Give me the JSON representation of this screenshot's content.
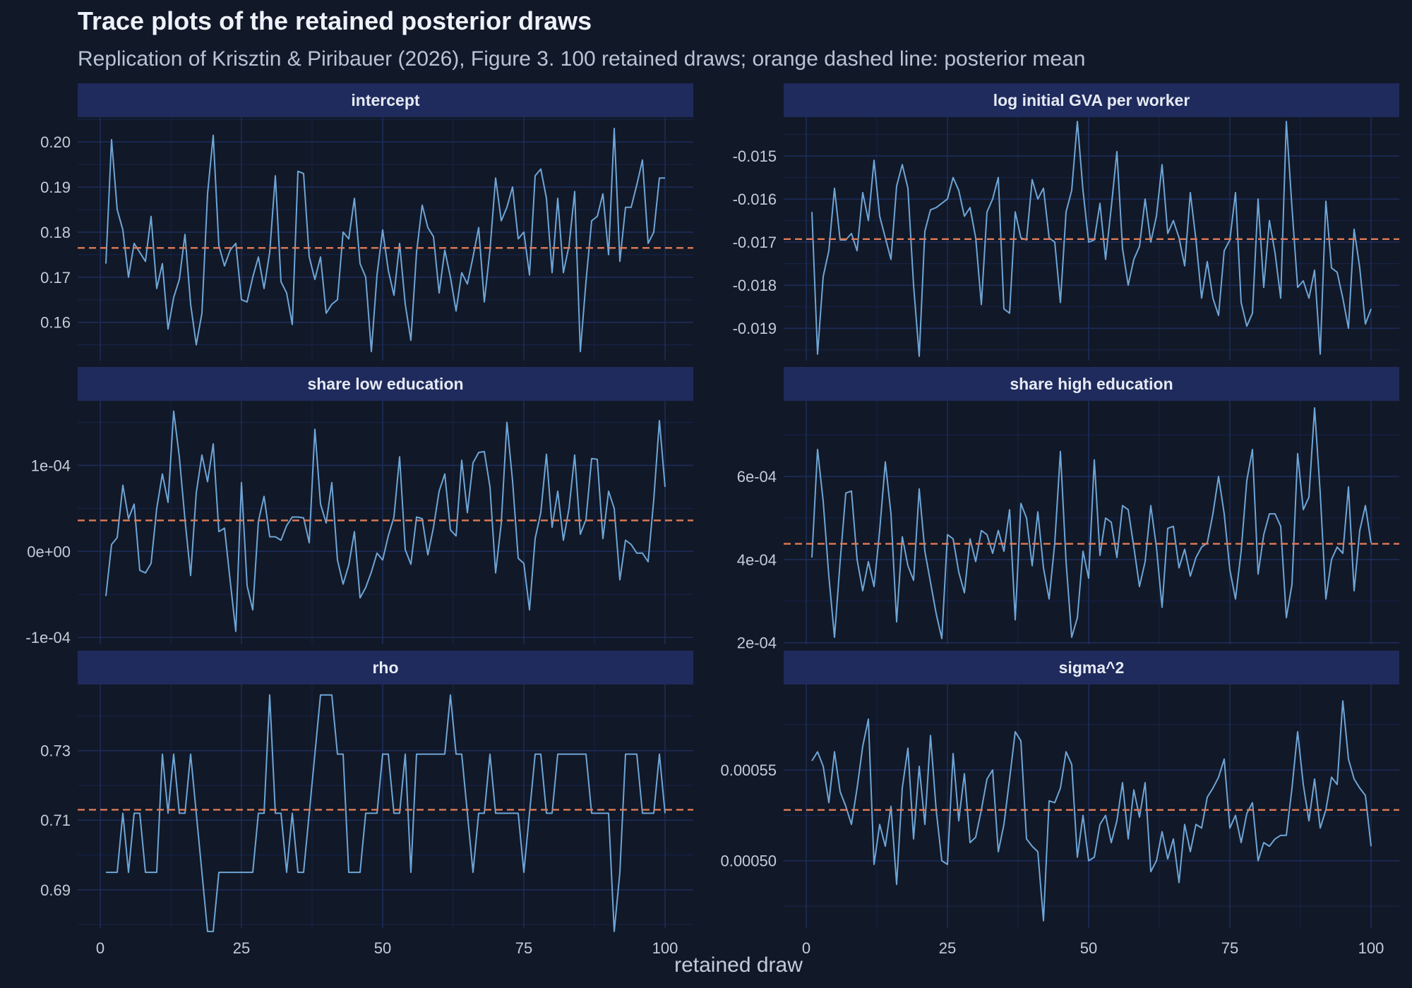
{
  "title": "Trace plots of the retained posterior draws",
  "subtitle": "Replication of Krisztin & Piribauer (2026), Figure 3. 100 retained draws; orange dashed line: posterior mean",
  "colors": {
    "background": "#111827",
    "strip": "#1f2b5c",
    "grid_major": "#1d2c5a",
    "grid_minor": "#172247",
    "trace": "#6ea5d6",
    "mean_line": "#e07b57"
  },
  "chart_data": {
    "type": "line",
    "xlabel": "retained draw",
    "xlim": [
      -4,
      105
    ],
    "xticks": [
      0,
      25,
      50,
      75,
      100
    ],
    "xtick_labels": [
      "0",
      "25",
      "50",
      "75",
      "100"
    ],
    "grid": true,
    "n_draws": 100,
    "panels": [
      {
        "name": "intercept",
        "ylim": [
          0.1515,
          0.2055
        ],
        "yticks": [
          0.16,
          0.17,
          0.18,
          0.19,
          0.2
        ],
        "ytick_labels": [
          "0.16",
          "0.17",
          "0.18",
          "0.19",
          "0.20"
        ],
        "mean": 0.1765,
        "values": [
          0.173,
          0.2005,
          0.185,
          0.1805,
          0.17,
          0.1775,
          0.1755,
          0.1735,
          0.1835,
          0.1675,
          0.173,
          0.1585,
          0.1655,
          0.1695,
          0.1795,
          0.164,
          0.155,
          0.162,
          0.1885,
          0.2015,
          0.177,
          0.1725,
          0.176,
          0.1775,
          0.165,
          0.1645,
          0.17,
          0.1745,
          0.1675,
          0.1755,
          0.1925,
          0.169,
          0.1665,
          0.1595,
          0.1935,
          0.193,
          0.1745,
          0.1695,
          0.1745,
          0.162,
          0.164,
          0.165,
          0.18,
          0.1785,
          0.1875,
          0.173,
          0.17,
          0.1535,
          0.1705,
          0.1805,
          0.1715,
          0.166,
          0.1775,
          0.164,
          0.156,
          0.1755,
          0.186,
          0.181,
          0.179,
          0.1665,
          0.176,
          0.17,
          0.1625,
          0.171,
          0.1685,
          0.1745,
          0.181,
          0.1645,
          0.176,
          0.192,
          0.1825,
          0.1855,
          0.19,
          0.1785,
          0.18,
          0.1705,
          0.1925,
          0.194,
          0.1875,
          0.171,
          0.1875,
          0.171,
          0.177,
          0.189,
          0.1535,
          0.169,
          0.1825,
          0.1835,
          0.1885,
          0.175,
          0.203,
          0.1735,
          0.1855,
          0.1855,
          0.1905,
          0.196,
          0.1775,
          0.18,
          0.192,
          0.192
        ]
      },
      {
        "name": "log initial GVA per worker",
        "ylim": [
          -0.01975,
          -0.0141
        ],
        "yticks": [
          -0.019,
          -0.018,
          -0.017,
          -0.016,
          -0.015
        ],
        "ytick_labels": [
          "-0.019",
          "-0.018",
          "-0.017",
          "-0.016",
          "-0.015"
        ],
        "mean": -0.01693,
        "values": [
          -0.0163,
          -0.0196,
          -0.0178,
          -0.0172,
          -0.01575,
          -0.01695,
          -0.01695,
          -0.0168,
          -0.0172,
          -0.01585,
          -0.0165,
          -0.0151,
          -0.0164,
          -0.0169,
          -0.0174,
          -0.0157,
          -0.0152,
          -0.01575,
          -0.018,
          -0.01965,
          -0.01675,
          -0.01625,
          -0.0162,
          -0.0161,
          -0.016,
          -0.0155,
          -0.0158,
          -0.0164,
          -0.0162,
          -0.0169,
          -0.01845,
          -0.0163,
          -0.016,
          -0.0155,
          -0.01855,
          -0.01865,
          -0.0163,
          -0.0169,
          -0.01695,
          -0.01555,
          -0.016,
          -0.01575,
          -0.0169,
          -0.017,
          -0.0184,
          -0.0163,
          -0.0158,
          -0.0142,
          -0.0158,
          -0.017,
          -0.01695,
          -0.0161,
          -0.0174,
          -0.0162,
          -0.0149,
          -0.01715,
          -0.018,
          -0.0174,
          -0.0171,
          -0.016,
          -0.017,
          -0.0164,
          -0.0152,
          -0.0168,
          -0.0165,
          -0.0169,
          -0.01755,
          -0.01585,
          -0.01695,
          -0.0183,
          -0.01745,
          -0.0183,
          -0.0187,
          -0.0172,
          -0.01695,
          -0.01585,
          -0.0184,
          -0.01895,
          -0.01865,
          -0.016,
          -0.01805,
          -0.0165,
          -0.01725,
          -0.0183,
          -0.0142,
          -0.0162,
          -0.01805,
          -0.0179,
          -0.0183,
          -0.01765,
          -0.0196,
          -0.01605,
          -0.0176,
          -0.0177,
          -0.0183,
          -0.019,
          -0.0167,
          -0.0176,
          -0.0189,
          -0.01855
        ]
      },
      {
        "name": "share low education",
        "ylim": [
          -0.000108,
          0.000175
        ],
        "yticks": [
          -0.0001,
          0.0,
          0.0001
        ],
        "ytick_labels": [
          "-1e-04",
          "0e+00",
          "1e-04"
        ],
        "mean": 3.6e-05,
        "values": [
          -5.2e-05,
          8e-06,
          1.6e-05,
          7.7e-05,
          3.8e-05,
          5.5e-05,
          -2.2e-05,
          -2.5e-05,
          -1.4e-05,
          5e-05,
          9e-05,
          5.7e-05,
          0.000163,
          0.00011,
          3.7e-05,
          -2.8e-05,
          6.8e-05,
          0.000112,
          8.1e-05,
          0.000125,
          2.3e-05,
          2.7e-05,
          -3.4e-05,
          -9.3e-05,
          8e-05,
          -4e-05,
          -6.8e-05,
          3.5e-05,
          6.4e-05,
          1.7e-05,
          1.7e-05,
          1.3e-05,
          3e-05,
          4e-05,
          4e-05,
          3.9e-05,
          1e-05,
          0.000142,
          5.5e-05,
          3.3e-05,
          8e-05,
          -1e-05,
          -3.8e-05,
          -1.6e-05,
          2.3e-05,
          -5.4e-05,
          -4.2e-05,
          -2.4e-05,
          -2e-06,
          -1e-05,
          1.8e-05,
          4e-05,
          0.00011,
          2e-06,
          -1.5e-05,
          4e-05,
          3.8e-05,
          -4e-06,
          2.8e-05,
          7e-05,
          9e-05,
          2.5e-05,
          1.8e-05,
          0.000106,
          4.5e-05,
          0.000103,
          0.000115,
          0.000116,
          7.5e-05,
          -2.5e-05,
          3.3e-05,
          0.00015,
          8.2e-05,
          -8e-06,
          -1.4e-05,
          -6.8e-05,
          1.5e-05,
          4.5e-05,
          0.000113,
          2.8e-05,
          7e-05,
          1.3e-05,
          5e-05,
          0.000112,
          2e-05,
          3.7e-05,
          0.000108,
          0.000107,
          1.5e-05,
          7e-05,
          5e-05,
          -3.3e-05,
          1.3e-05,
          8e-06,
          -2e-06,
          -2e-06,
          -1.2e-05,
          6e-05,
          0.000152,
          7.5e-05
        ]
      },
      {
        "name": "share high education",
        "ylim": [
          0.000196,
          0.000782
        ],
        "yticks": [
          0.0002,
          0.0004,
          0.0006
        ],
        "ytick_labels": [
          "2e-04",
          "4e-04",
          "6e-04"
        ],
        "mean": 0.000438,
        "values": [
          0.000405,
          0.000665,
          0.00054,
          0.00036,
          0.000213,
          0.000395,
          0.00056,
          0.000565,
          0.0004,
          0.000325,
          0.000395,
          0.000335,
          0.00047,
          0.000635,
          0.00051,
          0.00025,
          0.000455,
          0.000385,
          0.00035,
          0.00057,
          0.00042,
          0.000345,
          0.00027,
          0.00021,
          0.00046,
          0.00045,
          0.00037,
          0.00032,
          0.00045,
          0.000395,
          0.00047,
          0.00046,
          0.000415,
          0.00047,
          0.00042,
          0.00052,
          0.000255,
          0.000535,
          0.0005,
          0.000385,
          0.000515,
          0.00038,
          0.000305,
          0.00044,
          0.00066,
          0.000395,
          0.000213,
          0.00026,
          0.00042,
          0.000355,
          0.00064,
          0.00041,
          0.0005,
          0.00049,
          0.000405,
          0.00053,
          0.00052,
          0.00043,
          0.000335,
          0.000395,
          0.00053,
          0.00043,
          0.000285,
          0.000475,
          0.00048,
          0.00038,
          0.000425,
          0.00036,
          0.000405,
          0.00043,
          0.00044,
          0.00051,
          0.0006,
          0.00051,
          0.000375,
          0.000305,
          0.00042,
          0.00059,
          0.000665,
          0.000365,
          0.00046,
          0.00051,
          0.00051,
          0.00048,
          0.00026,
          0.00034,
          0.000655,
          0.00052,
          0.00055,
          0.000765,
          0.00056,
          0.000305,
          0.0004,
          0.00043,
          0.000415,
          0.000575,
          0.000325,
          0.00047,
          0.00053,
          0.00044
        ]
      },
      {
        "name": "rho",
        "ylim": [
          0.679,
          0.749
        ],
        "yticks": [
          0.69,
          0.71,
          0.73
        ],
        "ytick_labels": [
          "0.69",
          "0.71",
          "0.73"
        ],
        "mean": 0.713,
        "values": [
          0.695,
          0.695,
          0.695,
          0.712,
          0.695,
          0.712,
          0.712,
          0.695,
          0.695,
          0.695,
          0.729,
          0.712,
          0.729,
          0.712,
          0.712,
          0.729,
          0.712,
          0.695,
          0.678,
          0.678,
          0.695,
          0.695,
          0.695,
          0.695,
          0.695,
          0.695,
          0.695,
          0.712,
          0.712,
          0.746,
          0.712,
          0.712,
          0.695,
          0.712,
          0.695,
          0.695,
          0.712,
          0.729,
          0.746,
          0.746,
          0.746,
          0.729,
          0.729,
          0.695,
          0.695,
          0.695,
          0.712,
          0.712,
          0.712,
          0.729,
          0.729,
          0.712,
          0.712,
          0.729,
          0.695,
          0.729,
          0.729,
          0.729,
          0.729,
          0.729,
          0.729,
          0.746,
          0.729,
          0.729,
          0.712,
          0.695,
          0.712,
          0.712,
          0.729,
          0.712,
          0.712,
          0.712,
          0.712,
          0.712,
          0.695,
          0.712,
          0.729,
          0.729,
          0.712,
          0.712,
          0.729,
          0.729,
          0.729,
          0.729,
          0.729,
          0.729,
          0.712,
          0.712,
          0.712,
          0.712,
          0.678,
          0.695,
          0.729,
          0.729,
          0.729,
          0.712,
          0.712,
          0.712,
          0.729,
          0.712
        ]
      },
      {
        "name": "sigma^2",
        "ylim": [
          0.000463,
          0.000597
        ],
        "yticks": [
          0.0005,
          0.00055
        ],
        "ytick_labels": [
          "0.00050",
          "0.00055"
        ],
        "mean": 0.000528,
        "values": [
          0.000555,
          0.00056,
          0.000552,
          0.000532,
          0.00056,
          0.000538,
          0.00053,
          0.00052,
          0.00054,
          0.000563,
          0.000578,
          0.000498,
          0.00052,
          0.000508,
          0.00053,
          0.000487,
          0.00054,
          0.000562,
          0.000512,
          0.000552,
          0.00052,
          0.000569,
          0.000528,
          0.0005,
          0.000498,
          0.000559,
          0.000522,
          0.000548,
          0.00051,
          0.000513,
          0.000528,
          0.000545,
          0.00055,
          0.000505,
          0.00052,
          0.000545,
          0.000571,
          0.000566,
          0.000512,
          0.000508,
          0.000505,
          0.000467,
          0.000533,
          0.000532,
          0.00054,
          0.00056,
          0.000553,
          0.000502,
          0.000525,
          0.0005,
          0.000502,
          0.00052,
          0.000525,
          0.00051,
          0.000522,
          0.000543,
          0.000512,
          0.000539,
          0.000524,
          0.000543,
          0.000494,
          0.0005,
          0.000516,
          0.000501,
          0.000512,
          0.000488,
          0.00052,
          0.000505,
          0.00052,
          0.000518,
          0.000535,
          0.00054,
          0.000546,
          0.000556,
          0.000518,
          0.000525,
          0.00051,
          0.000526,
          0.000532,
          0.0005,
          0.00051,
          0.000508,
          0.000512,
          0.000514,
          0.000514,
          0.00054,
          0.000571,
          0.000542,
          0.000522,
          0.000545,
          0.000518,
          0.000528,
          0.000546,
          0.000542,
          0.000588,
          0.000556,
          0.000545,
          0.00054,
          0.000536,
          0.000508
        ]
      }
    ]
  }
}
